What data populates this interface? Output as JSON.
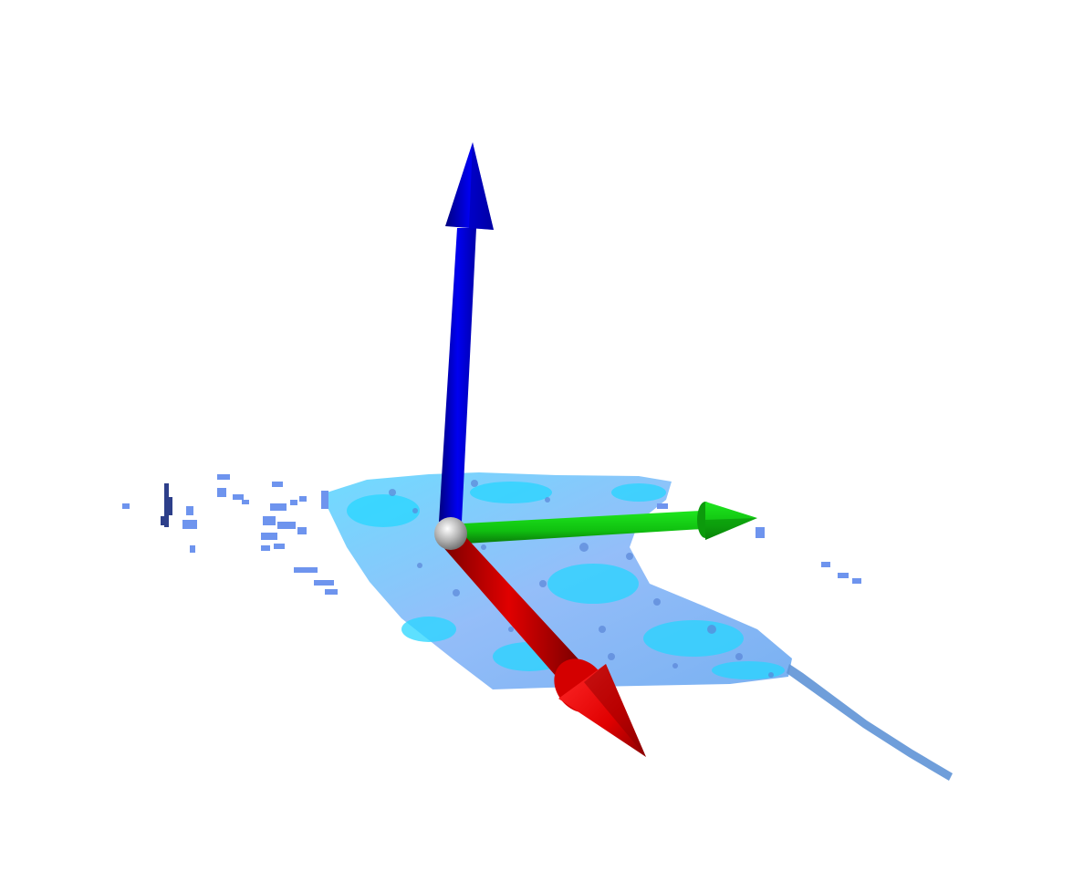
{
  "scene": {
    "background": "#ffffff",
    "axes": {
      "x": {
        "color": "#e60000",
        "shade": "#8c0000"
      },
      "y": {
        "color": "#14d214",
        "shade": "#0a8a0a"
      },
      "z": {
        "color": "#0000f0",
        "shade": "#000090"
      },
      "origin": {
        "color": "#b0b0b0"
      }
    },
    "point_cloud": {
      "plane_color": "#7fb2ff",
      "highlight_color": "#27d5ff",
      "scatter_color": "#6e94ee",
      "dark_color": "#2d3f8a",
      "trail_color": "#5f93d6"
    }
  }
}
